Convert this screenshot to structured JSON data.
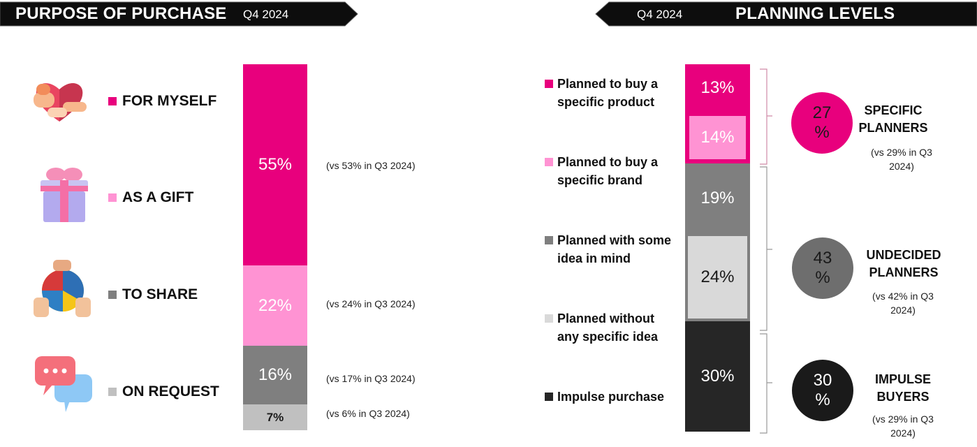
{
  "left_panel": {
    "title": "PURPOSE OF PURCHASE",
    "period": "Q4 2024",
    "categories": [
      {
        "label": "FOR MYSELF",
        "icon": "heart-hug-icon",
        "color": "#E8007D"
      },
      {
        "label": "AS A GIFT",
        "icon": "gift-box-icon",
        "color": "#FF93D3"
      },
      {
        "label": "TO SHARE",
        "icon": "shared-pie-icon",
        "color": "#7F7F7F"
      },
      {
        "label": "ON REQUEST",
        "icon": "chat-bubbles-icon",
        "color": "#C0C0C0"
      }
    ],
    "comparisons": [
      "(vs 53% in Q3 2024)",
      "(vs 24% in Q3 2024)",
      "(vs 17% in Q3 2024)",
      "(vs 6% in Q3 2024)"
    ]
  },
  "right_panel": {
    "title": "PLANNING LEVELS",
    "period": "Q4 2024",
    "categories": [
      {
        "label": "Planned to buy a specific product",
        "color": "#E8007D"
      },
      {
        "label": "Planned to buy a specific brand",
        "color": "#FF93D3"
      },
      {
        "label": "Planned with some idea in mind",
        "color": "#7F7F7F"
      },
      {
        "label": "Planned without any specific idea",
        "color": "#D9D9D9"
      },
      {
        "label": "Impulse purchase",
        "color": "#262626"
      }
    ],
    "segments": [
      {
        "value_label": "27 %",
        "name": "SPECIFIC PLANNERS",
        "comparison": "(vs 29% in Q3 2024)",
        "color": "#E8007D"
      },
      {
        "value_label": "43 %",
        "name": "UNDECIDED PLANNERS",
        "comparison": "(vs 42% in Q3 2024)",
        "color": "#6E6E6E"
      },
      {
        "value_label": "30 %",
        "name": "IMPULSE BUYERS",
        "comparison": "(vs 29% in Q3 2024)",
        "color": "#1A1A1A"
      }
    ]
  },
  "chart_data": [
    {
      "type": "bar",
      "stacked": true,
      "title": "PURPOSE OF PURCHASE",
      "categories": [
        "Q4 2024"
      ],
      "series": [
        {
          "name": "FOR MYSELF",
          "values": [
            55
          ],
          "label": "55%",
          "color": "#E8007D"
        },
        {
          "name": "AS A GIFT",
          "values": [
            22
          ],
          "label": "22%",
          "color": "#FF93D3"
        },
        {
          "name": "TO SHARE",
          "values": [
            16
          ],
          "label": "16%",
          "color": "#7F7F7F"
        },
        {
          "name": "ON REQUEST",
          "values": [
            7
          ],
          "label": "7%",
          "color": "#C0C0C0"
        }
      ],
      "legend": "left"
    },
    {
      "type": "bar",
      "stacked": true,
      "title": "PLANNING LEVELS",
      "categories": [
        "Q4 2024"
      ],
      "series": [
        {
          "name": "Planned to buy a specific product",
          "values": [
            13
          ],
          "label": "13%",
          "color": "#E8007D"
        },
        {
          "name": "Planned to buy a specific brand",
          "values": [
            14
          ],
          "label": "14%",
          "color": "#FF93D3"
        },
        {
          "name": "Planned with some idea in mind",
          "values": [
            19
          ],
          "label": "19%",
          "color": "#7F7F7F"
        },
        {
          "name": "Planned without any specific idea",
          "values": [
            24
          ],
          "label": "24%",
          "color": "#D9D9D9"
        },
        {
          "name": "Impulse purchase",
          "values": [
            30
          ],
          "label": "30%",
          "color": "#262626"
        }
      ],
      "legend": "left"
    }
  ]
}
